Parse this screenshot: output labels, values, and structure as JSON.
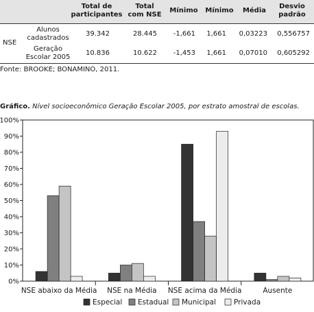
{
  "table": {
    "headers": [
      "Total de participantes",
      "Total com NSE",
      "Mínimo",
      "Mínimo",
      "Média",
      "Desvio padrão"
    ],
    "group_label": "NSE",
    "rows": [
      {
        "label": "Alunos cadastrados",
        "values": [
          "39.342",
          "28.445",
          "-1,661",
          "1,661",
          "0,03223",
          "0,556757"
        ]
      },
      {
        "label": "Geração Escolar 2005",
        "values": [
          "10.836",
          "10.622",
          "-1,453",
          "1,661",
          "0,07010",
          "0,605292"
        ]
      }
    ]
  },
  "source": "Fonte: BROOKE; BONAMINO, 2011.",
  "graph_title": {
    "prefix": "Gráfico.",
    "text": " Nível socioeconômico Geração Escolar 2005, por estrato amostral de escolas."
  },
  "chart_data": {
    "type": "bar",
    "categories": [
      "NSE abaixo da Média",
      "NSE na Média",
      "NSE acima da Média",
      "Ausente"
    ],
    "series": [
      {
        "name": "Especial",
        "values": [
          6,
          5,
          85,
          5
        ],
        "color": "#333333"
      },
      {
        "name": "Estadual",
        "values": [
          53,
          10,
          37,
          1
        ],
        "color": "#808080"
      },
      {
        "name": "Municipal",
        "values": [
          59,
          11,
          28,
          3
        ],
        "color": "#c4c4c4"
      },
      {
        "name": "Privada",
        "values": [
          3,
          3,
          93,
          2
        ],
        "color": "#ececec"
      }
    ],
    "ylim": [
      0,
      100
    ],
    "yticks": [
      "0%",
      "10%",
      "20%",
      "30%",
      "40%",
      "50%",
      "60%",
      "70%",
      "80%",
      "90%",
      "100%"
    ],
    "legend": "bottom"
  }
}
